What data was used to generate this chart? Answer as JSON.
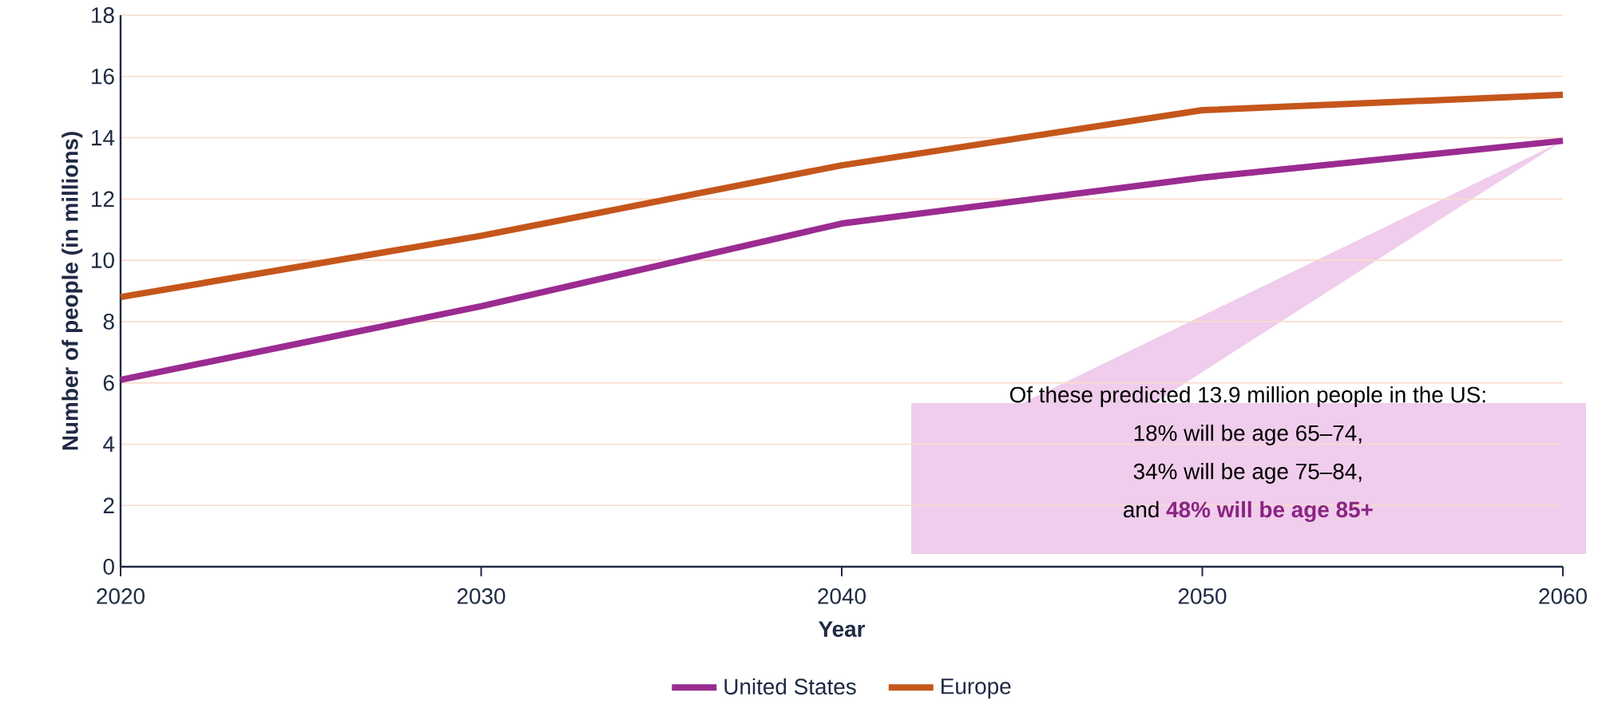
{
  "chart_data": {
    "type": "line",
    "xlabel": "Year",
    "ylabel": "Number of people (in millions)",
    "x": [
      2020,
      2030,
      2040,
      2050,
      2060
    ],
    "series": [
      {
        "name": "United States",
        "color": "#9b2b91",
        "values": [
          6.1,
          8.5,
          11.2,
          12.7,
          13.9
        ]
      },
      {
        "name": "Europe",
        "color": "#c5561b",
        "values": [
          8.8,
          10.8,
          13.1,
          14.9,
          15.4
        ]
      }
    ],
    "xlim": [
      2020,
      2060
    ],
    "xticks": [
      2020,
      2030,
      2040,
      2050,
      2060
    ],
    "ylim": [
      0,
      18
    ],
    "yticks": [
      0,
      2,
      4,
      6,
      8,
      10,
      12,
      14,
      16,
      18
    ],
    "grid": "y",
    "legend": "bottom",
    "marker": "none",
    "line_style": "solid",
    "annotations": [
      "Of these predicted 13.9 million people in the US:",
      "18% will be age 65–74,",
      "34% will be age 75–84,",
      "and",
      "48% will be age 85+"
    ]
  }
}
